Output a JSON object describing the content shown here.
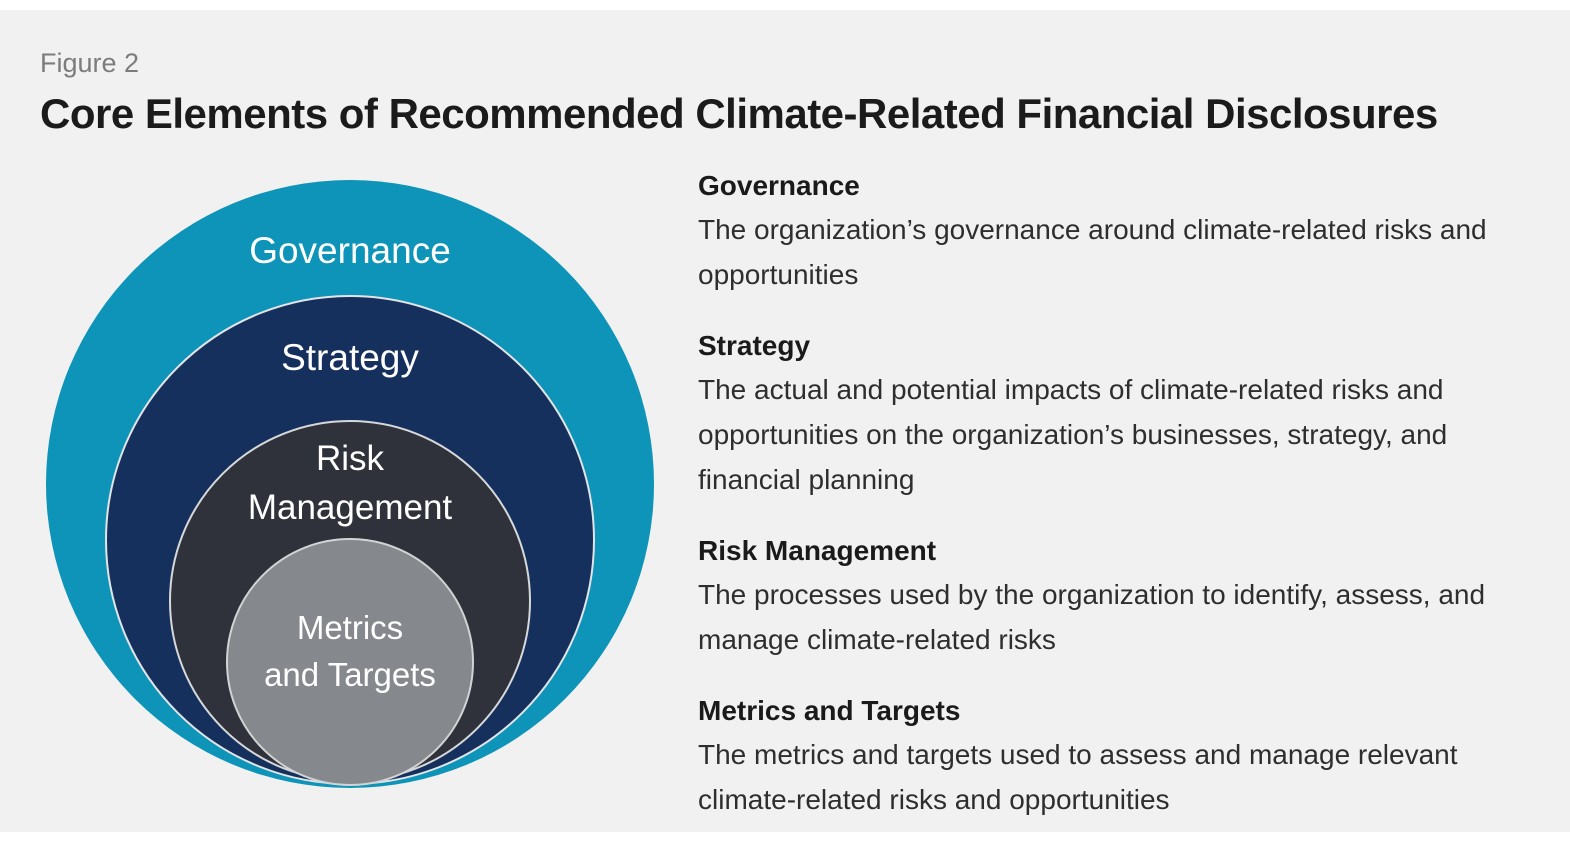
{
  "figure_label": "Figure 2",
  "title": "Core Elements of Recommended Climate-Related Financial Disclosures",
  "diagram": {
    "rings": [
      {
        "name": "governance",
        "label": "Governance",
        "color": "#0D94B8"
      },
      {
        "name": "strategy",
        "label": "Strategy",
        "color": "#16305E"
      },
      {
        "name": "risk-management",
        "label_lines": [
          "Risk",
          "Management"
        ],
        "color": "#2F323A"
      },
      {
        "name": "metrics-and-targets",
        "label_lines": [
          "Metrics",
          "and Targets"
        ],
        "color": "#85888C"
      }
    ],
    "label_text_color": "#FFFFFF"
  },
  "sections": [
    {
      "heading": "Governance",
      "body": "The organization’s governance around climate-related risks and opportunities"
    },
    {
      "heading": "Strategy",
      "body": "The actual and potential impacts of climate-related risks and opportunities on the organization’s businesses, strategy, and financial planning"
    },
    {
      "heading": "Risk Management",
      "body": "The processes used by the organization to identify, assess, and manage climate-related risks"
    },
    {
      "heading": "Metrics and Targets",
      "body": "The metrics and targets used to assess and manage relevant climate-related risks and opportunities"
    }
  ]
}
